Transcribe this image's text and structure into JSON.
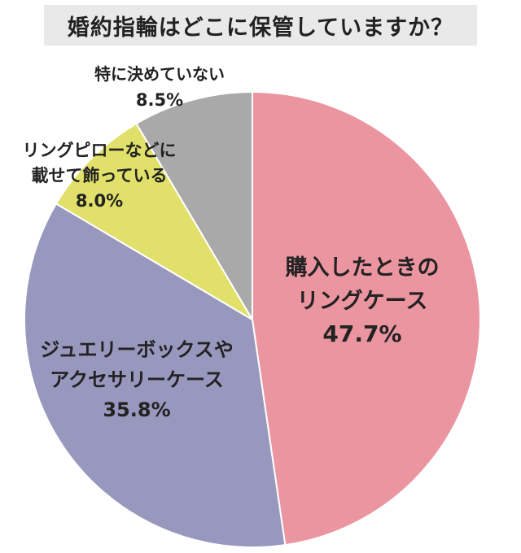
{
  "chart_data": {
    "type": "pie",
    "title": "婚約指輪はどこに保管していますか？",
    "start": "12 o'clock, clockwise",
    "slices": [
      {
        "lines": [
          "購入したときの",
          "リングケース"
        ],
        "value_label": "47.7%",
        "value": 47.7,
        "color": "#eb95a1"
      },
      {
        "lines": [
          "ジュエリーボックスや",
          "アクセサリーケース"
        ],
        "value_label": "35.8%",
        "value": 35.8,
        "color": "#9898bf"
      },
      {
        "lines": [
          "リングピローなどに",
          "載せて飾っている"
        ],
        "value_label": "8.0%",
        "value": 8.0,
        "color": "#e0e06a"
      },
      {
        "lines": [
          "特に決めていない"
        ],
        "value_label": "8.5%",
        "value": 8.5,
        "color": "#a9a9a9"
      }
    ]
  }
}
